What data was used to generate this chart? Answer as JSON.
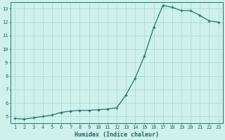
{
  "x": [
    1,
    2,
    3,
    4,
    5,
    6,
    7,
    8,
    9,
    10,
    11,
    12,
    13,
    14,
    15,
    16,
    17,
    18,
    19,
    20,
    21,
    22,
    23
  ],
  "y": [
    4.85,
    4.8,
    4.9,
    5.0,
    5.1,
    5.3,
    5.4,
    5.45,
    5.45,
    5.5,
    5.55,
    5.65,
    6.6,
    7.85,
    9.5,
    11.6,
    13.25,
    13.1,
    12.85,
    12.85,
    12.5,
    12.1,
    12.0
  ],
  "xlabel": "Humidex (Indice chaleur)",
  "xlim_min": 0.5,
  "xlim_max": 23.5,
  "ylim_min": 4.5,
  "ylim_max": 13.5,
  "yticks": [
    5,
    6,
    7,
    8,
    9,
    10,
    11,
    12,
    13
  ],
  "xticks": [
    1,
    2,
    3,
    4,
    5,
    6,
    7,
    8,
    9,
    10,
    11,
    12,
    13,
    14,
    15,
    16,
    17,
    18,
    19,
    20,
    21,
    22,
    23
  ],
  "line_color": "#1a7a6e",
  "marker": "+",
  "bg_color": "#cff0eb",
  "grid_color": "#aaddd8",
  "font_color": "#1a6b62",
  "font_size_tick": 5,
  "font_size_xlabel": 6,
  "linewidth": 0.9,
  "markersize": 3.5,
  "markeredgewidth": 0.9
}
